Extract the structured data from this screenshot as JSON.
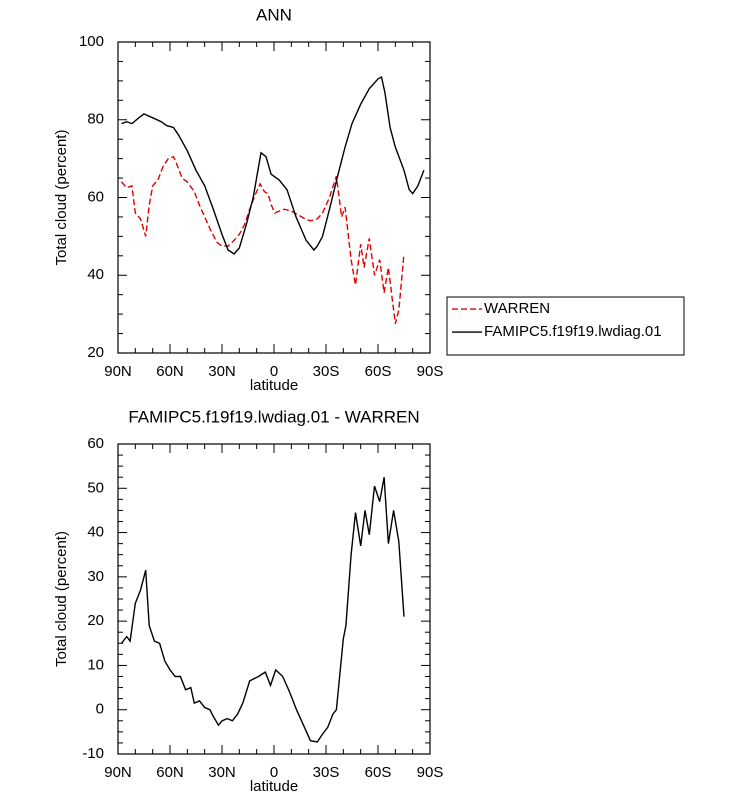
{
  "chart_data": [
    {
      "type": "line",
      "title": "ANN",
      "xlabel": "latitude",
      "ylabel": "Total cloud (percent)",
      "xlim": [
        90,
        -90
      ],
      "xticks": [
        {
          "value": 90,
          "label": "90N"
        },
        {
          "value": 60,
          "label": "60N"
        },
        {
          "value": 30,
          "label": "30N"
        },
        0,
        {
          "value": -30,
          "label": "30S"
        },
        {
          "value": -60,
          "label": "60S"
        },
        {
          "value": -90,
          "label": "90S"
        }
      ],
      "ylim": [
        20,
        100
      ],
      "yticks": [
        20,
        40,
        60,
        80,
        100
      ],
      "legend": "outside-right",
      "series": [
        {
          "name": "WARREN",
          "color": "#e00000",
          "style": "dashed",
          "x": [
            88,
            85,
            82,
            80,
            77,
            74,
            72,
            70,
            67,
            64,
            61,
            58,
            56,
            53,
            50,
            46,
            43,
            40,
            37,
            33,
            30,
            26.5,
            23,
            20,
            17,
            14,
            11,
            8,
            5.5,
            3.5,
            1.5,
            -0.5,
            -3,
            -6,
            -10,
            -14,
            -18,
            -21,
            -25,
            -28,
            -32,
            -36,
            -39,
            -41,
            -44.5,
            -47,
            -50,
            -52,
            -55,
            -58,
            -61,
            -63.5,
            -66,
            -70,
            -72,
            -75
          ],
          "values": [
            64,
            62.5,
            63,
            56,
            54.5,
            50,
            58,
            63,
            64.5,
            68,
            70,
            70.5,
            68.5,
            65,
            64,
            61.5,
            58,
            55,
            52,
            48.5,
            47.5,
            47.5,
            49,
            50.5,
            53,
            57,
            60.5,
            63.5,
            61.5,
            61,
            58,
            56,
            56.5,
            57,
            56.5,
            55.5,
            54.5,
            54,
            54.5,
            56,
            60,
            65.5,
            55,
            57.5,
            44,
            37.5,
            48,
            42,
            49.5,
            40,
            44,
            35.5,
            42,
            27.5,
            31,
            45.5
          ]
        },
        {
          "name": "FAMIPC5.f19f19.lwdiag.01",
          "color": "#000000",
          "style": "solid",
          "x": [
            88,
            85,
            82,
            78,
            75,
            70,
            65,
            62,
            58,
            55,
            50,
            45,
            40,
            35,
            30,
            26.5,
            23,
            20,
            16,
            12,
            7.5,
            4.6,
            1.7,
            -3,
            -7.5,
            -12.7,
            -18.5,
            -23,
            -25,
            -28,
            -32,
            -37,
            -41,
            -45,
            -50,
            -55,
            -60,
            -62,
            -64,
            -67,
            -70,
            -75,
            -78,
            -80,
            -83,
            -86.5
          ],
          "values": [
            79,
            79.5,
            79,
            80.5,
            81.5,
            80.5,
            79.5,
            78.5,
            78,
            76,
            72,
            67,
            63,
            57,
            50.5,
            46.5,
            45.5,
            47,
            53,
            60,
            71.5,
            70.5,
            66,
            64.5,
            62,
            55,
            49,
            46.5,
            47.5,
            50,
            57,
            66,
            73,
            79,
            84,
            88,
            90.5,
            91,
            87,
            78,
            73,
            67,
            62,
            61,
            63,
            67
          ]
        }
      ]
    },
    {
      "type": "line",
      "title": "FAMIPC5.f19f19.lwdiag.01 - WARREN",
      "xlabel": "latitude",
      "ylabel": "Total cloud (percent)",
      "xlim": [
        90,
        -90
      ],
      "xticks": [
        {
          "value": 90,
          "label": "90N"
        },
        {
          "value": 60,
          "label": "60N"
        },
        {
          "value": 30,
          "label": "30N"
        },
        0,
        {
          "value": -30,
          "label": "30S"
        },
        {
          "value": -60,
          "label": "60S"
        },
        {
          "value": -90,
          "label": "90S"
        }
      ],
      "ylim": [
        -10,
        60
      ],
      "yticks": [
        -10,
        0,
        10,
        20,
        30,
        40,
        50,
        60
      ],
      "color": "#000000",
      "x": [
        88,
        85,
        83,
        80,
        77,
        74,
        72,
        69,
        66,
        63,
        60,
        57,
        54,
        51,
        48,
        46,
        43,
        40,
        37,
        35,
        32,
        30,
        27,
        24,
        21,
        18,
        14,
        9,
        5,
        2,
        -1,
        -5,
        -9,
        -13,
        -17,
        -21,
        -25,
        -28,
        -31,
        -34,
        -36,
        -40,
        -41.5,
        -44.5,
        -47,
        -50,
        -52.5,
        -55,
        -58,
        -61,
        -63.5,
        -66,
        -69,
        -72,
        -75
      ],
      "values": [
        15,
        16.5,
        15.5,
        24,
        27,
        31.5,
        19,
        15.5,
        15,
        11,
        9,
        7.5,
        7.5,
        4.5,
        5,
        1.5,
        2,
        0.5,
        0,
        -1.5,
        -3.5,
        -2.5,
        -2,
        -2.5,
        -1,
        1.5,
        6.5,
        7.5,
        8.5,
        5.5,
        9,
        7.5,
        4,
        0,
        -3.5,
        -7,
        -7.3,
        -5.5,
        -4,
        -1,
        0,
        16,
        19,
        35,
        44.5,
        37,
        45,
        39.5,
        50.5,
        47,
        52.5,
        37.5,
        45,
        38,
        21
      ]
    }
  ]
}
